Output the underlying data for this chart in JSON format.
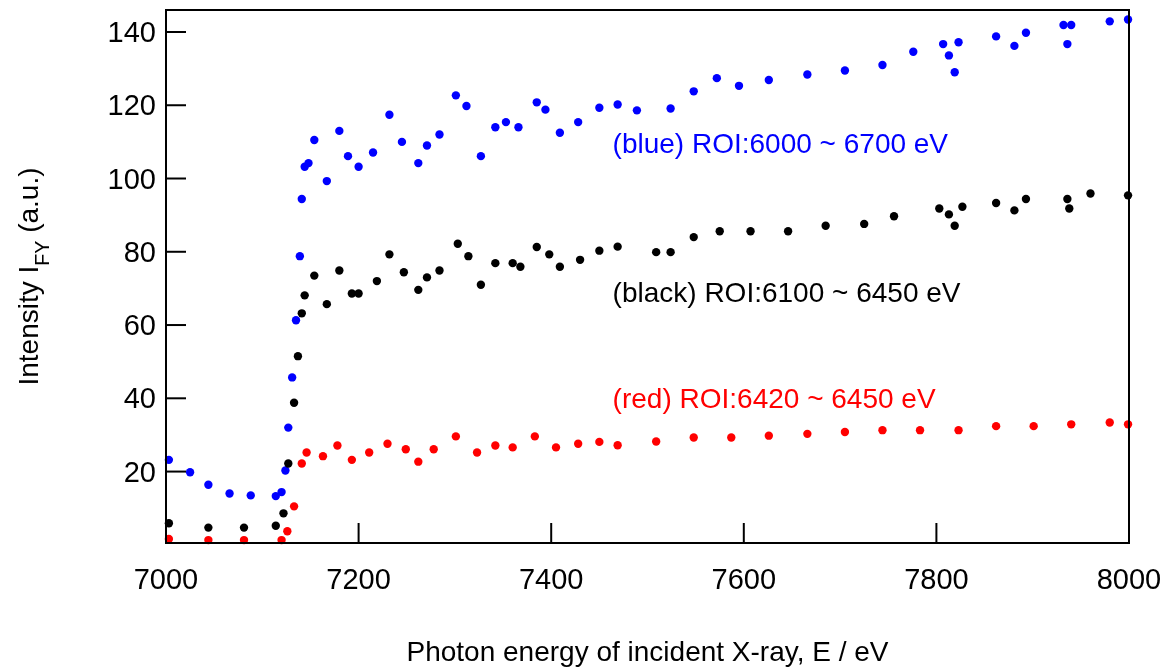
{
  "chart_data": {
    "type": "scatter",
    "xlabel": "Photon energy of incident X-ray, E / eV",
    "ylabel": "Intensity I$_{FY}$ (a.u.)",
    "xlim": [
      7000,
      8000
    ],
    "ylim": [
      0.5,
      146
    ],
    "xticks": [
      7000,
      7200,
      7400,
      7600,
      7800,
      8000
    ],
    "yticks": [
      20,
      40,
      60,
      80,
      100,
      120,
      140
    ],
    "marker": "circle",
    "grid": false,
    "series": [
      {
        "name": "(blue) ROI:6000 ~ 6700 eV",
        "color": "#0000ff",
        "x": [
          7003,
          7025,
          7044,
          7066,
          7088,
          7114,
          7120,
          7124,
          7127,
          7131,
          7135,
          7139,
          7141,
          7144,
          7148,
          7154,
          7167,
          7180,
          7189,
          7200,
          7215,
          7232,
          7245,
          7262,
          7271,
          7284,
          7301,
          7312,
          7327,
          7342,
          7353,
          7366,
          7385,
          7394,
          7409,
          7428,
          7450,
          7469,
          7489,
          7524,
          7548,
          7572,
          7595,
          7626,
          7666,
          7705,
          7744,
          7776,
          7807,
          7813,
          7819,
          7823,
          7862,
          7881,
          7893,
          7932,
          7936,
          7940,
          7980,
          7999
        ],
        "values": [
          23.2,
          19.8,
          16.4,
          14,
          13.5,
          13.3,
          14.4,
          20.3,
          32,
          45.7,
          61.3,
          78.8,
          94.4,
          103.2,
          104.2,
          110.5,
          99.3,
          113,
          106.1,
          103.2,
          107.1,
          117.4,
          110,
          104.2,
          109,
          112,
          122.7,
          119.8,
          106.1,
          114,
          115.4,
          114,
          120.8,
          118.8,
          112.5,
          115.4,
          119.3,
          120.2,
          118.6,
          119.1,
          123.8,
          127.4,
          125.3,
          126.9,
          128.4,
          129.5,
          131,
          134.6,
          136.7,
          133.6,
          129,
          137.2,
          138.8,
          136.2,
          139.8,
          141.9,
          136.7,
          141.9,
          142.9,
          143.4
        ]
      },
      {
        "name": "(black) ROI:6100 ~ 6450 eV",
        "color": "#000000",
        "x": [
          7003,
          7044,
          7081,
          7114,
          7122,
          7127,
          7133,
          7137,
          7141,
          7144,
          7154,
          7167,
          7180,
          7193,
          7200,
          7219,
          7232,
          7247,
          7262,
          7271,
          7284,
          7303,
          7314,
          7327,
          7342,
          7360,
          7368,
          7385,
          7398,
          7409,
          7430,
          7450,
          7469,
          7509,
          7524,
          7548,
          7575,
          7607,
          7646,
          7685,
          7725,
          7756,
          7803,
          7813,
          7819,
          7827,
          7862,
          7881,
          7893,
          7936,
          7938,
          7960,
          7999
        ],
        "values": [
          5.9,
          4.7,
          4.7,
          5.2,
          8.6,
          22.2,
          38.8,
          51.5,
          63.2,
          68.1,
          73.5,
          65.7,
          74.9,
          68.6,
          68.6,
          72,
          79.3,
          74.4,
          69.6,
          73,
          74.9,
          82.2,
          78.8,
          71,
          76.9,
          76.9,
          75.9,
          81.3,
          79.3,
          75.9,
          77.8,
          80.3,
          81.4,
          79.9,
          79.9,
          84,
          85.6,
          85.6,
          85.6,
          87.1,
          87.6,
          89.7,
          91.8,
          90.2,
          87.1,
          92.3,
          93.3,
          91.3,
          94.4,
          94.4,
          91.8,
          95.9,
          95.4
        ]
      },
      {
        "name": "(red) ROI:6420 ~ 6450 eV",
        "color": "#ff0000",
        "x": [
          7003,
          7044,
          7081,
          7120,
          7126,
          7133,
          7141,
          7146,
          7163,
          7178,
          7193,
          7211,
          7230,
          7249,
          7262,
          7278,
          7301,
          7323,
          7342,
          7360,
          7383,
          7405,
          7428,
          7450,
          7469,
          7509,
          7548,
          7587,
          7626,
          7666,
          7705,
          7744,
          7783,
          7823,
          7862,
          7901,
          7940,
          7980,
          7999
        ],
        "values": [
          1.6,
          1.3,
          1.3,
          1.3,
          3.7,
          10.5,
          22.2,
          25.2,
          24.2,
          27.1,
          23.2,
          25.2,
          27.6,
          26.1,
          22.7,
          26.1,
          29.6,
          25.2,
          27.1,
          26.6,
          29.6,
          26.6,
          27.6,
          28.1,
          27.2,
          28.2,
          29.3,
          29.3,
          29.8,
          30.3,
          30.8,
          31.3,
          31.3,
          31.3,
          32.4,
          32.4,
          32.9,
          33.4,
          32.9
        ]
      }
    ]
  }
}
